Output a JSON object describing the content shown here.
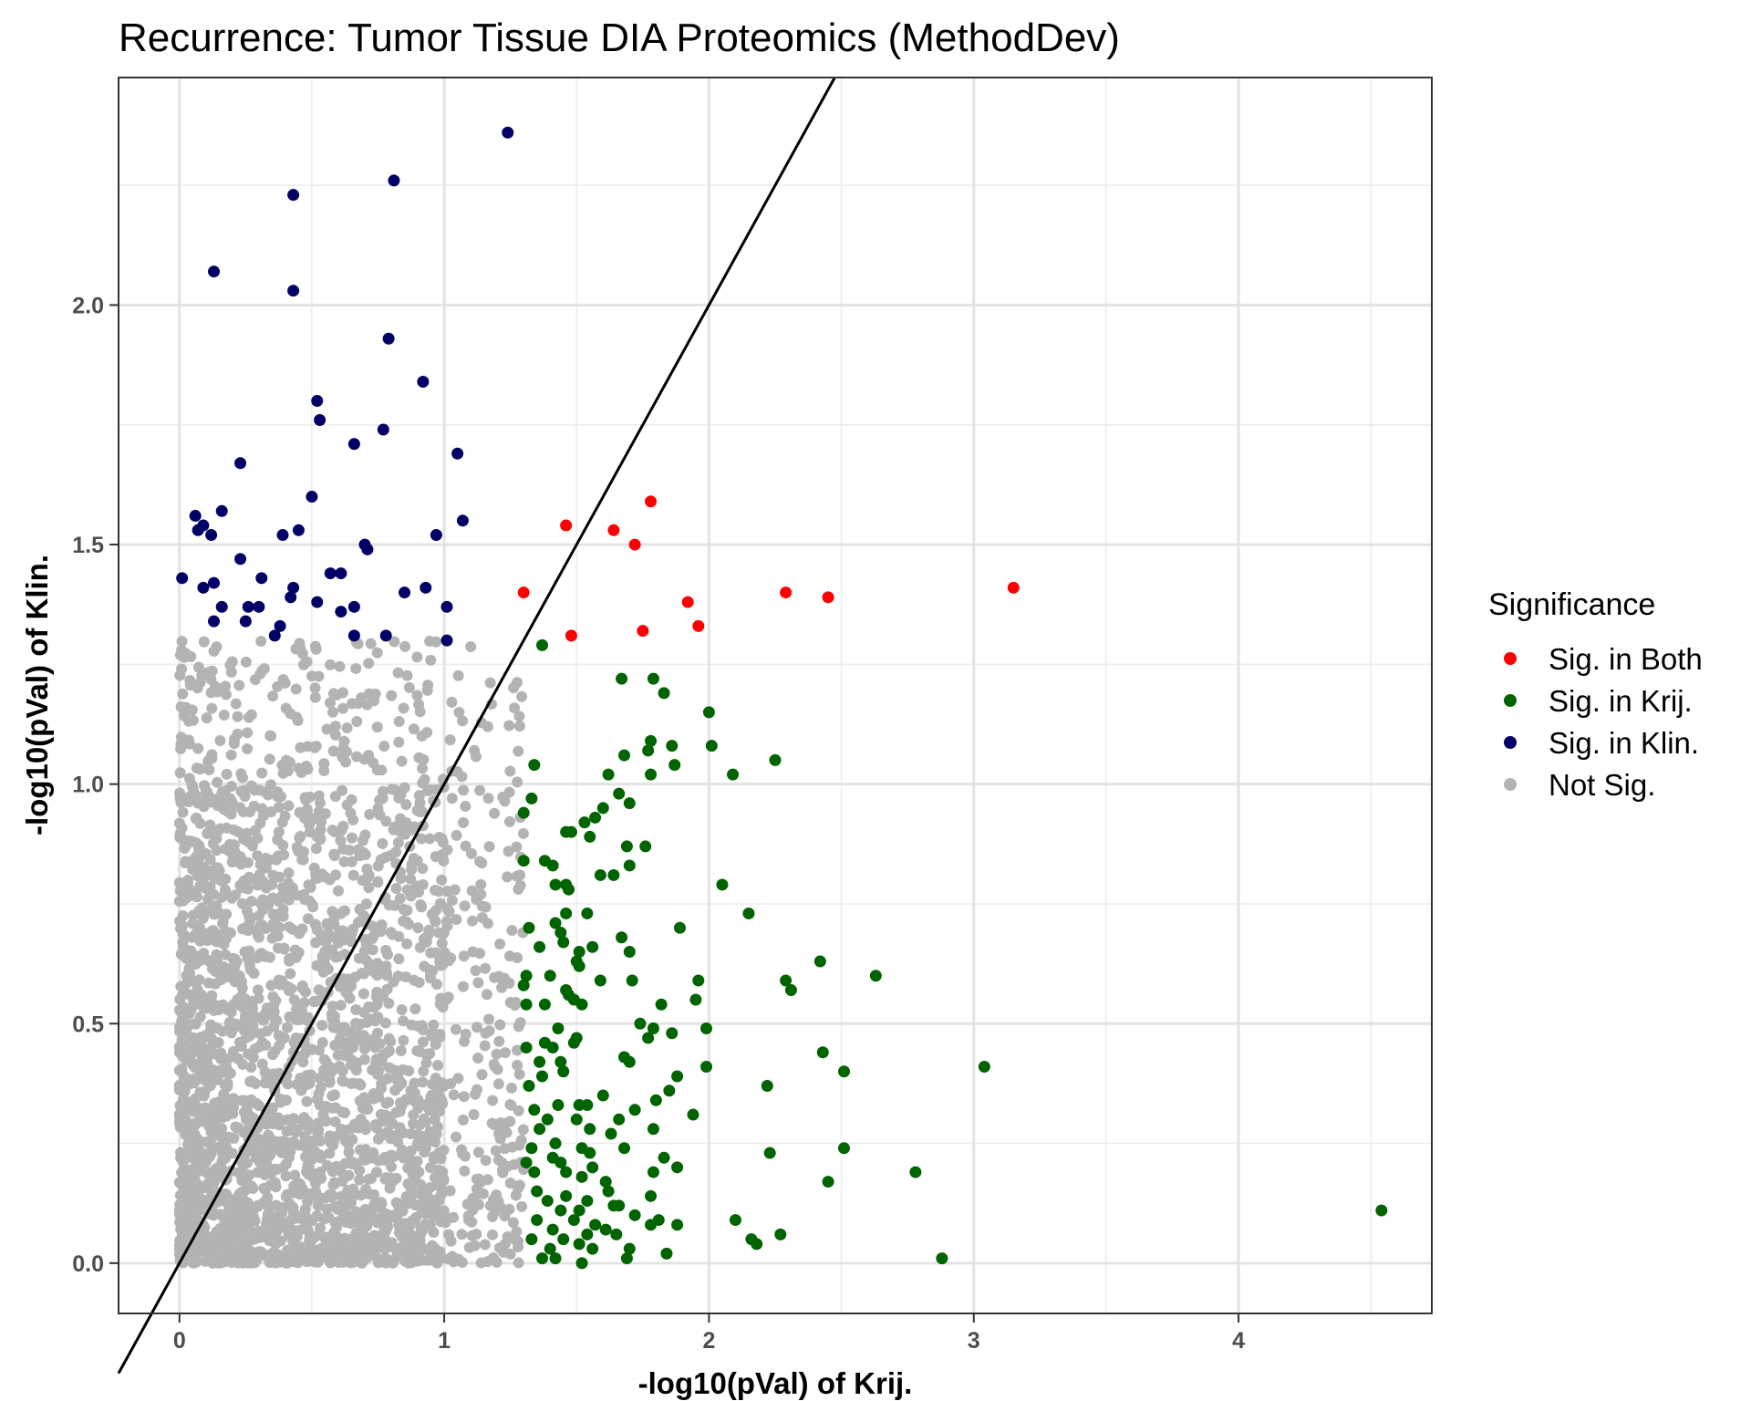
{
  "chart_data": {
    "type": "scatter",
    "title": "Recurrence: Tumor Tissue DIA Proteomics (MethodDev)",
    "xlabel": "-log10(pVal) of Krij.",
    "ylabel": "-log10(pVal) of Klin.",
    "xlim": [
      -0.23,
      4.73
    ],
    "ylim": [
      -0.105,
      2.475
    ],
    "x_ticks": [
      {
        "value": 0,
        "label": "0"
      },
      {
        "value": 1,
        "label": "1"
      },
      {
        "value": 2,
        "label": "2"
      },
      {
        "value": 3,
        "label": "3"
      },
      {
        "value": 4,
        "label": "4"
      }
    ],
    "y_ticks": [
      {
        "value": 0,
        "label": "0.0"
      },
      {
        "value": 0.5,
        "label": "0.5"
      },
      {
        "value": 1,
        "label": "1.0"
      },
      {
        "value": 1.5,
        "label": "1.5"
      },
      {
        "value": 2,
        "label": "2.0"
      }
    ],
    "reference_line": {
      "intercept": 0,
      "slope": 1
    },
    "grid": true,
    "legend": {
      "title": "Significance",
      "placement": "right"
    },
    "not_sig_region": {
      "description": "dense cloud of thousands of points where both values fall below 1.3 (5% level)",
      "x_range": [
        0,
        1.3
      ],
      "y_range": [
        0,
        1.3
      ]
    },
    "series": [
      {
        "name": "Sig. in Both",
        "color": "#ff0000",
        "points": [
          [
            1.46,
            1.54
          ],
          [
            1.64,
            1.53
          ],
          [
            1.72,
            1.5
          ],
          [
            1.78,
            1.59
          ],
          [
            1.3,
            1.4
          ],
          [
            1.48,
            1.31
          ],
          [
            1.75,
            1.32
          ],
          [
            1.92,
            1.38
          ],
          [
            1.96,
            1.33
          ],
          [
            2.29,
            1.4
          ],
          [
            2.45,
            1.39
          ],
          [
            3.15,
            1.41
          ]
        ]
      },
      {
        "name": "Sig. in Krij.",
        "color": "#006400",
        "points": [
          [
            1.37,
            1.29
          ],
          [
            1.67,
            1.22
          ],
          [
            1.79,
            1.22
          ],
          [
            1.83,
            1.19
          ],
          [
            2.0,
            1.15
          ],
          [
            2.25,
            1.05
          ],
          [
            1.78,
            1.09
          ],
          [
            1.86,
            1.08
          ],
          [
            2.01,
            1.08
          ],
          [
            1.68,
            1.06
          ],
          [
            1.77,
            1.07
          ],
          [
            1.34,
            1.04
          ],
          [
            1.62,
            1.02
          ],
          [
            1.78,
            1.02
          ],
          [
            2.09,
            1.02
          ],
          [
            1.87,
            1.04
          ],
          [
            1.66,
            0.98
          ],
          [
            1.7,
            0.96
          ],
          [
            1.33,
            0.97
          ],
          [
            1.6,
            0.95
          ],
          [
            1.3,
            0.94
          ],
          [
            1.53,
            0.92
          ],
          [
            1.57,
            0.93
          ],
          [
            1.46,
            0.9
          ],
          [
            1.48,
            0.9
          ],
          [
            1.55,
            0.89
          ],
          [
            1.69,
            0.87
          ],
          [
            1.76,
            0.87
          ],
          [
            1.3,
            0.84
          ],
          [
            1.38,
            0.84
          ],
          [
            1.41,
            0.83
          ],
          [
            1.59,
            0.81
          ],
          [
            1.64,
            0.81
          ],
          [
            1.7,
            0.83
          ],
          [
            1.42,
            0.79
          ],
          [
            1.46,
            0.79
          ],
          [
            2.05,
            0.79
          ],
          [
            1.47,
            0.78
          ],
          [
            1.46,
            0.73
          ],
          [
            1.54,
            0.73
          ],
          [
            2.15,
            0.73
          ],
          [
            1.32,
            0.7
          ],
          [
            1.42,
            0.71
          ],
          [
            1.44,
            0.69
          ],
          [
            1.89,
            0.7
          ],
          [
            1.56,
            0.66
          ],
          [
            1.67,
            0.68
          ],
          [
            1.45,
            0.67
          ],
          [
            1.36,
            0.66
          ],
          [
            1.51,
            0.65
          ],
          [
            1.7,
            0.65
          ],
          [
            1.5,
            0.63
          ],
          [
            1.51,
            0.62
          ],
          [
            2.42,
            0.63
          ],
          [
            1.31,
            0.6
          ],
          [
            1.4,
            0.6
          ],
          [
            1.59,
            0.59
          ],
          [
            1.71,
            0.59
          ],
          [
            1.96,
            0.59
          ],
          [
            2.29,
            0.59
          ],
          [
            1.3,
            0.58
          ],
          [
            1.46,
            0.57
          ],
          [
            2.31,
            0.57
          ],
          [
            2.63,
            0.6
          ],
          [
            1.47,
            0.56
          ],
          [
            1.49,
            0.55
          ],
          [
            1.38,
            0.54
          ],
          [
            1.52,
            0.54
          ],
          [
            1.31,
            0.54
          ],
          [
            1.82,
            0.54
          ],
          [
            1.95,
            0.55
          ],
          [
            1.74,
            0.5
          ],
          [
            1.79,
            0.49
          ],
          [
            1.99,
            0.49
          ],
          [
            1.43,
            0.49
          ],
          [
            1.86,
            0.48
          ],
          [
            1.38,
            0.46
          ],
          [
            1.49,
            0.46
          ],
          [
            1.5,
            0.47
          ],
          [
            1.77,
            0.47
          ],
          [
            1.31,
            0.45
          ],
          [
            1.41,
            0.45
          ],
          [
            2.43,
            0.44
          ],
          [
            1.68,
            0.43
          ],
          [
            1.7,
            0.42
          ],
          [
            1.36,
            0.42
          ],
          [
            1.44,
            0.42
          ],
          [
            3.04,
            0.41
          ],
          [
            1.37,
            0.39
          ],
          [
            1.45,
            0.4
          ],
          [
            1.99,
            0.41
          ],
          [
            2.51,
            0.4
          ],
          [
            1.88,
            0.39
          ],
          [
            1.32,
            0.37
          ],
          [
            1.85,
            0.36
          ],
          [
            2.22,
            0.37
          ],
          [
            1.6,
            0.35
          ],
          [
            1.8,
            0.34
          ],
          [
            1.34,
            0.32
          ],
          [
            1.43,
            0.33
          ],
          [
            1.51,
            0.33
          ],
          [
            1.54,
            0.33
          ],
          [
            1.72,
            0.32
          ],
          [
            1.94,
            0.31
          ],
          [
            1.39,
            0.3
          ],
          [
            1.5,
            0.3
          ],
          [
            1.66,
            0.3
          ],
          [
            1.36,
            0.28
          ],
          [
            1.55,
            0.28
          ],
          [
            1.63,
            0.27
          ],
          [
            1.79,
            0.28
          ],
          [
            1.42,
            0.25
          ],
          [
            1.33,
            0.24
          ],
          [
            1.52,
            0.24
          ],
          [
            1.68,
            0.24
          ],
          [
            2.51,
            0.24
          ],
          [
            1.41,
            0.22
          ],
          [
            1.55,
            0.23
          ],
          [
            1.83,
            0.22
          ],
          [
            2.23,
            0.23
          ],
          [
            1.31,
            0.21
          ],
          [
            1.44,
            0.21
          ],
          [
            1.56,
            0.2
          ],
          [
            1.88,
            0.2
          ],
          [
            1.34,
            0.19
          ],
          [
            1.46,
            0.19
          ],
          [
            1.79,
            0.19
          ],
          [
            2.78,
            0.19
          ],
          [
            1.52,
            0.18
          ],
          [
            1.61,
            0.17
          ],
          [
            2.45,
            0.17
          ],
          [
            1.35,
            0.15
          ],
          [
            1.46,
            0.14
          ],
          [
            1.62,
            0.15
          ],
          [
            1.78,
            0.14
          ],
          [
            1.39,
            0.13
          ],
          [
            1.54,
            0.13
          ],
          [
            1.66,
            0.12
          ],
          [
            1.44,
            0.11
          ],
          [
            1.51,
            0.11
          ],
          [
            1.64,
            0.12
          ],
          [
            1.72,
            0.1
          ],
          [
            1.35,
            0.09
          ],
          [
            1.49,
            0.09
          ],
          [
            1.57,
            0.08
          ],
          [
            1.81,
            0.09
          ],
          [
            1.88,
            0.08
          ],
          [
            2.1,
            0.09
          ],
          [
            1.78,
            0.08
          ],
          [
            1.41,
            0.07
          ],
          [
            1.54,
            0.06
          ],
          [
            1.61,
            0.07
          ],
          [
            2.27,
            0.06
          ],
          [
            1.33,
            0.05
          ],
          [
            1.45,
            0.05
          ],
          [
            1.51,
            0.04
          ],
          [
            2.16,
            0.05
          ],
          [
            2.18,
            0.04
          ],
          [
            1.65,
            0.06
          ],
          [
            1.4,
            0.03
          ],
          [
            1.56,
            0.03
          ],
          [
            1.7,
            0.03
          ],
          [
            1.84,
            0.02
          ],
          [
            1.37,
            0.01
          ],
          [
            1.42,
            0.01
          ],
          [
            1.52,
            0.0
          ],
          [
            1.69,
            0.01
          ],
          [
            2.88,
            0.01
          ],
          [
            4.54,
            0.11
          ]
        ]
      },
      {
        "name": "Sig. in Klin.",
        "color": "#000066",
        "points": [
          [
            1.24,
            2.36
          ],
          [
            0.81,
            2.26
          ],
          [
            0.43,
            2.23
          ],
          [
            0.13,
            2.07
          ],
          [
            0.43,
            2.03
          ],
          [
            0.79,
            1.93
          ],
          [
            0.92,
            1.84
          ],
          [
            0.52,
            1.8
          ],
          [
            0.53,
            1.76
          ],
          [
            0.66,
            1.71
          ],
          [
            0.77,
            1.74
          ],
          [
            1.05,
            1.69
          ],
          [
            0.23,
            1.67
          ],
          [
            0.5,
            1.6
          ],
          [
            0.06,
            1.56
          ],
          [
            0.16,
            1.57
          ],
          [
            0.09,
            1.54
          ],
          [
            0.07,
            1.53
          ],
          [
            0.12,
            1.52
          ],
          [
            0.45,
            1.53
          ],
          [
            0.39,
            1.52
          ],
          [
            0.97,
            1.52
          ],
          [
            1.07,
            1.55
          ],
          [
            0.7,
            1.5
          ],
          [
            0.71,
            1.49
          ],
          [
            0.01,
            1.43
          ],
          [
            0.13,
            1.42
          ],
          [
            0.09,
            1.41
          ],
          [
            0.23,
            1.47
          ],
          [
            0.31,
            1.43
          ],
          [
            0.43,
            1.41
          ],
          [
            0.57,
            1.44
          ],
          [
            0.61,
            1.44
          ],
          [
            0.42,
            1.39
          ],
          [
            0.85,
            1.4
          ],
          [
            0.93,
            1.41
          ],
          [
            0.16,
            1.37
          ],
          [
            0.26,
            1.37
          ],
          [
            0.3,
            1.37
          ],
          [
            0.52,
            1.38
          ],
          [
            0.66,
            1.37
          ],
          [
            1.01,
            1.37
          ],
          [
            0.13,
            1.34
          ],
          [
            0.25,
            1.34
          ],
          [
            0.38,
            1.33
          ],
          [
            0.36,
            1.31
          ],
          [
            0.61,
            1.36
          ],
          [
            0.66,
            1.31
          ],
          [
            0.78,
            1.31
          ],
          [
            1.01,
            1.3
          ]
        ]
      },
      {
        "name": "Not Sig.",
        "color": "#b3b3b3",
        "points": []
      }
    ]
  }
}
